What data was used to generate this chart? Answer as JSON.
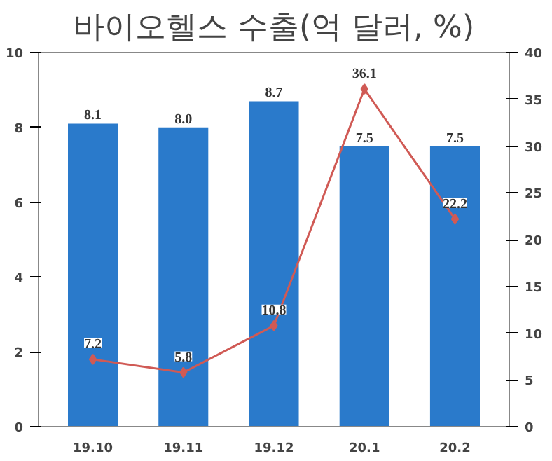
{
  "chart_data": {
    "type": "bar",
    "title": "바이오헬스 수출(억 달러, %)",
    "categories": [
      "19.10",
      "19.11",
      "19.12",
      "20.1",
      "20.2"
    ],
    "series": [
      {
        "color": "#2a7acb",
        "values": [
          8.1,
          8.0,
          8.7,
          7.5,
          7.5
        ],
        "value_labels": [
          "8.1",
          "8.0",
          "8.7",
          "7.5",
          "7.5"
        ]
      },
      {
        "type": "line",
        "axis": "y2",
        "color": "#d05a55",
        "marker": "diamond",
        "values": [
          7.2,
          5.8,
          10.8,
          36.1,
          22.2
        ]
      }
    ],
    "ylim": [
      0,
      10
    ],
    "yticks": [
      0,
      2,
      4,
      6,
      8,
      10
    ],
    "y2lim": [
      0,
      40
    ],
    "y2ticks": [
      0,
      5,
      10,
      15,
      20,
      25,
      30,
      35,
      40
    ],
    "grid": false,
    "data_labels": true
  }
}
